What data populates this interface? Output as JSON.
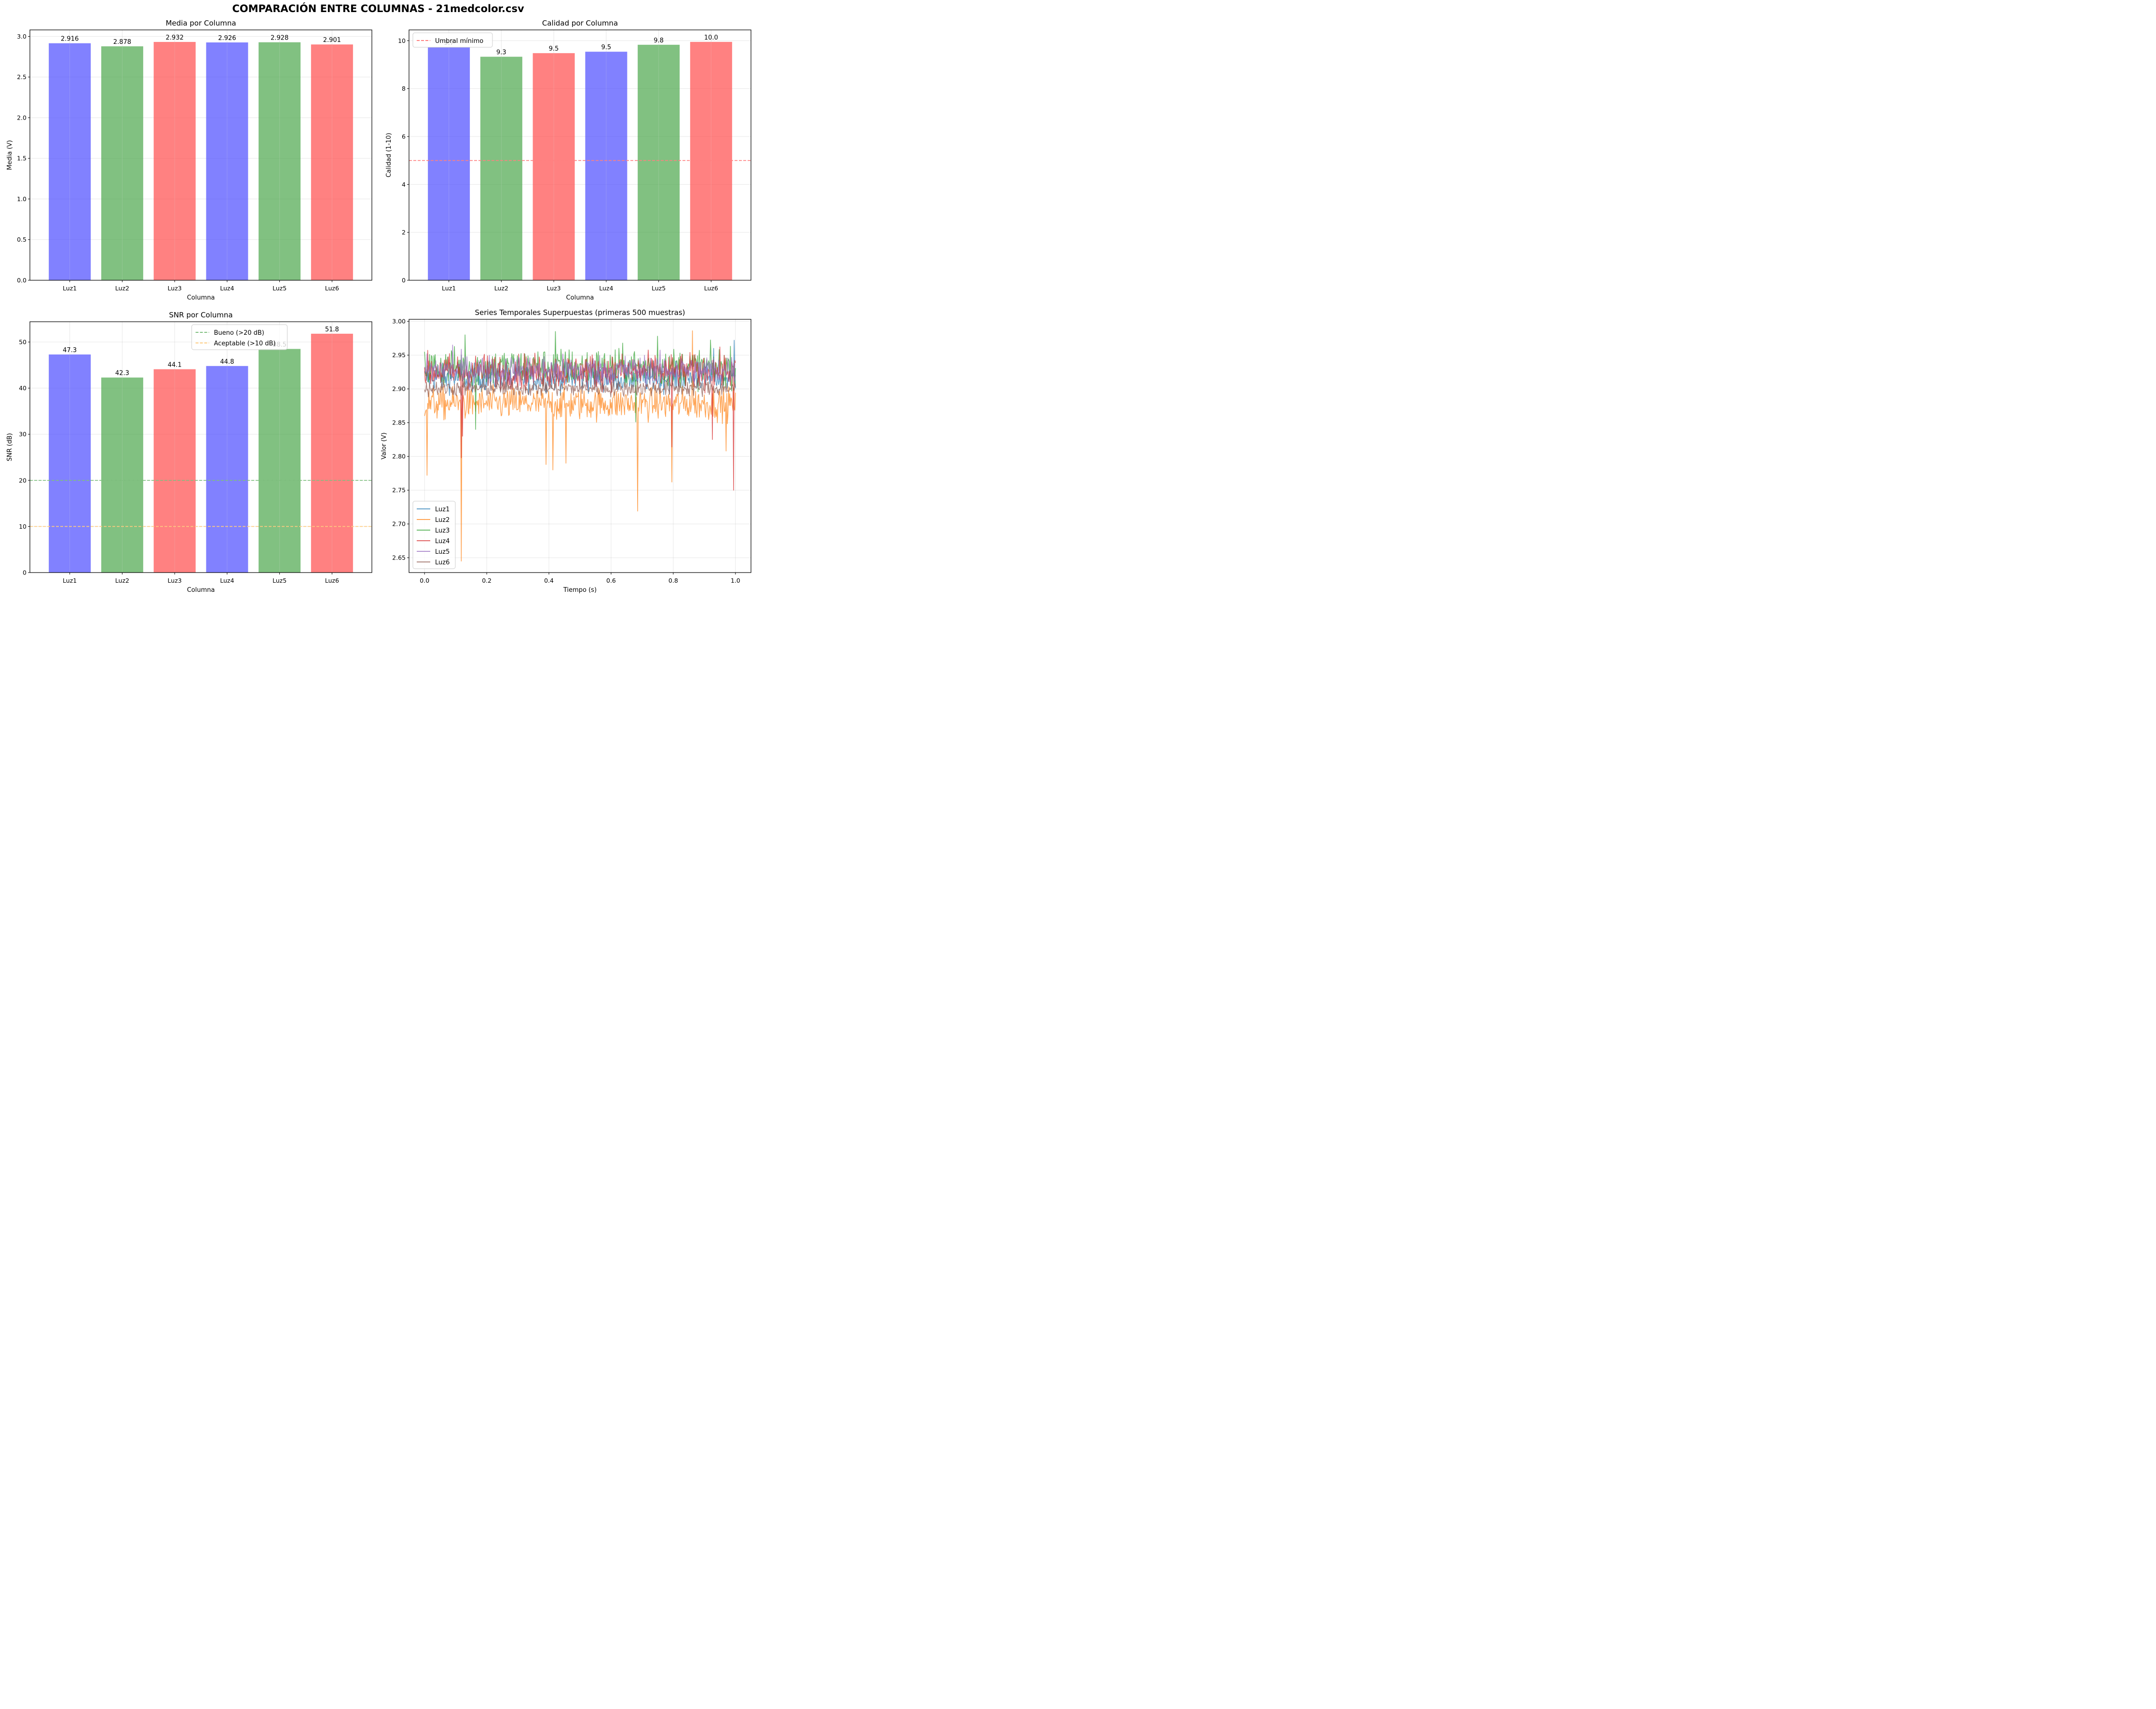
{
  "suptitle": "COMPARACIÓN ENTRE COLUMNAS - 21medcolor.csv",
  "colors": {
    "blue_bar": "#4b4bff",
    "green_bar": "#4ca64c",
    "red_bar": "#ff4b4b",
    "threshold_red": "#ff7f7f",
    "threshold_green": "#7fbf7f",
    "threshold_orange": "#ffcc80"
  },
  "chart_data": [
    {
      "id": "media",
      "type": "bar",
      "title": "Media por Columna",
      "xlabel": "Columna",
      "ylabel": "Media (V)",
      "categories": [
        "Luz1",
        "Luz2",
        "Luz3",
        "Luz4",
        "Luz5",
        "Luz6"
      ],
      "values": [
        2.916,
        2.878,
        2.932,
        2.926,
        2.928,
        2.901
      ],
      "labels": [
        "2.916",
        "2.878",
        "2.932",
        "2.926",
        "2.928",
        "2.901"
      ],
      "bar_colors": [
        "#4b4bff",
        "#4ca64c",
        "#ff4b4b",
        "#4b4bff",
        "#4ca64c",
        "#ff4b4b"
      ],
      "ylim": [
        0,
        3.08
      ],
      "yticks": [
        0.0,
        0.5,
        1.0,
        1.5,
        2.0,
        2.5,
        3.0
      ],
      "ytick_labels": [
        "0.0",
        "0.5",
        "1.0",
        "1.5",
        "2.0",
        "2.5",
        "3.0"
      ],
      "grid": true,
      "hlines": [],
      "legend": null
    },
    {
      "id": "calidad",
      "type": "bar",
      "title": "Calidad por Columna",
      "xlabel": "Columna",
      "ylabel": "Calidad (1-10)",
      "categories": [
        "Luz1",
        "Luz2",
        "Luz3",
        "Luz4",
        "Luz5",
        "Luz6"
      ],
      "values": [
        9.73,
        9.33,
        9.48,
        9.54,
        9.83,
        9.95
      ],
      "labels": [
        "9.7",
        "9.3",
        "9.5",
        "9.5",
        "9.8",
        "10.0"
      ],
      "bar_colors": [
        "#4b4bff",
        "#4ca64c",
        "#ff4b4b",
        "#4b4bff",
        "#4ca64c",
        "#ff4b4b"
      ],
      "ylim": [
        0,
        10.45
      ],
      "yticks": [
        0,
        2,
        4,
        6,
        8,
        10
      ],
      "ytick_labels": [
        "0",
        "2",
        "4",
        "6",
        "8",
        "10"
      ],
      "grid": true,
      "hlines": [
        {
          "y": 5,
          "color": "#ff7f7f",
          "label": "Umbral mínimo"
        }
      ],
      "legend": {
        "position": "top-left",
        "entries": [
          "Umbral mínimo"
        ]
      }
    },
    {
      "id": "snr",
      "type": "bar",
      "title": "SNR por Columna",
      "xlabel": "Columna",
      "ylabel": "SNR (dB)",
      "categories": [
        "Luz1",
        "Luz2",
        "Luz3",
        "Luz4",
        "Luz5",
        "Luz6"
      ],
      "values": [
        47.3,
        42.3,
        44.1,
        44.8,
        48.5,
        51.8
      ],
      "labels": [
        "47.3",
        "42.3",
        "44.1",
        "44.8",
        "48.5",
        "51.8"
      ],
      "bar_colors": [
        "#4b4bff",
        "#4ca64c",
        "#ff4b4b",
        "#4b4bff",
        "#4ca64c",
        "#ff4b4b"
      ],
      "ylim": [
        0,
        54.4
      ],
      "yticks": [
        0,
        10,
        20,
        30,
        40,
        50
      ],
      "ytick_labels": [
        "0",
        "10",
        "20",
        "30",
        "40",
        "50"
      ],
      "grid": true,
      "hlines": [
        {
          "y": 20,
          "color": "#7fbf7f",
          "label": "Bueno (>20 dB)"
        },
        {
          "y": 10,
          "color": "#ffcc80",
          "label": "Aceptable (>10 dB)"
        }
      ],
      "legend": {
        "position": "top-center",
        "entries": [
          "Bueno (>20 dB)",
          "Aceptable (>10 dB)"
        ]
      }
    },
    {
      "id": "series",
      "type": "line",
      "title": "Series Temporales Superpuestas (primeras 500 muestras)",
      "xlabel": "Tiempo (s)",
      "ylabel": "Valor (V)",
      "xlim": [
        -0.05,
        1.05
      ],
      "ylim": [
        2.628,
        3.003
      ],
      "xticks": [
        0.0,
        0.2,
        0.4,
        0.6,
        0.8,
        1.0
      ],
      "xtick_labels": [
        "0.0",
        "0.2",
        "0.4",
        "0.6",
        "0.8",
        "1.0"
      ],
      "yticks": [
        2.65,
        2.7,
        2.75,
        2.8,
        2.85,
        2.9,
        2.95,
        3.0
      ],
      "ytick_labels": [
        "2.65",
        "2.70",
        "2.75",
        "2.80",
        "2.85",
        "2.90",
        "2.95",
        "3.00"
      ],
      "samples": 500,
      "x_range": [
        0.0,
        1.0
      ],
      "grid": true,
      "legend": {
        "position": "bottom-left",
        "entries": [
          "Luz1",
          "Luz2",
          "Luz3",
          "Luz4",
          "Luz5",
          "Luz6"
        ]
      },
      "series": [
        {
          "name": "Luz1",
          "color": "#1f77b4",
          "mean": 2.916,
          "noise": 0.01,
          "spikes": [
            [
              0.93,
              2.96
            ],
            [
              0.995,
              2.972
            ]
          ]
        },
        {
          "name": "Luz2",
          "color": "#ff7f0e",
          "mean": 2.878,
          "noise": 0.012,
          "spikes": [
            [
              0.0,
              2.86
            ],
            [
              0.008,
              2.772
            ],
            [
              0.118,
              2.645
            ],
            [
              0.39,
              2.788
            ],
            [
              0.412,
              2.78
            ],
            [
              0.455,
              2.79
            ],
            [
              0.685,
              2.719
            ],
            [
              0.795,
              2.762
            ],
            [
              0.862,
              2.986
            ],
            [
              0.97,
              2.808
            ]
          ]
        },
        {
          "name": "Luz3",
          "color": "#2ca02c",
          "mean": 2.932,
          "noise": 0.014,
          "spikes": [
            [
              0.165,
              2.84
            ],
            [
              0.42,
              2.985
            ],
            [
              0.13,
              2.98
            ],
            [
              0.68,
              2.851
            ],
            [
              0.75,
              2.978
            ]
          ]
        },
        {
          "name": "Luz4",
          "color": "#d62728",
          "mean": 2.926,
          "noise": 0.013,
          "spikes": [
            [
              0.118,
              2.798
            ],
            [
              0.122,
              2.83
            ],
            [
              0.795,
              2.814
            ],
            [
              0.925,
              2.825
            ],
            [
              0.993,
              2.75
            ]
          ]
        },
        {
          "name": "Luz5",
          "color": "#9467bd",
          "mean": 2.928,
          "noise": 0.011,
          "spikes": [
            [
              0.09,
              2.965
            ]
          ]
        },
        {
          "name": "Luz6",
          "color": "#8c564b",
          "mean": 2.901,
          "noise": 0.006,
          "spikes": []
        }
      ]
    }
  ]
}
